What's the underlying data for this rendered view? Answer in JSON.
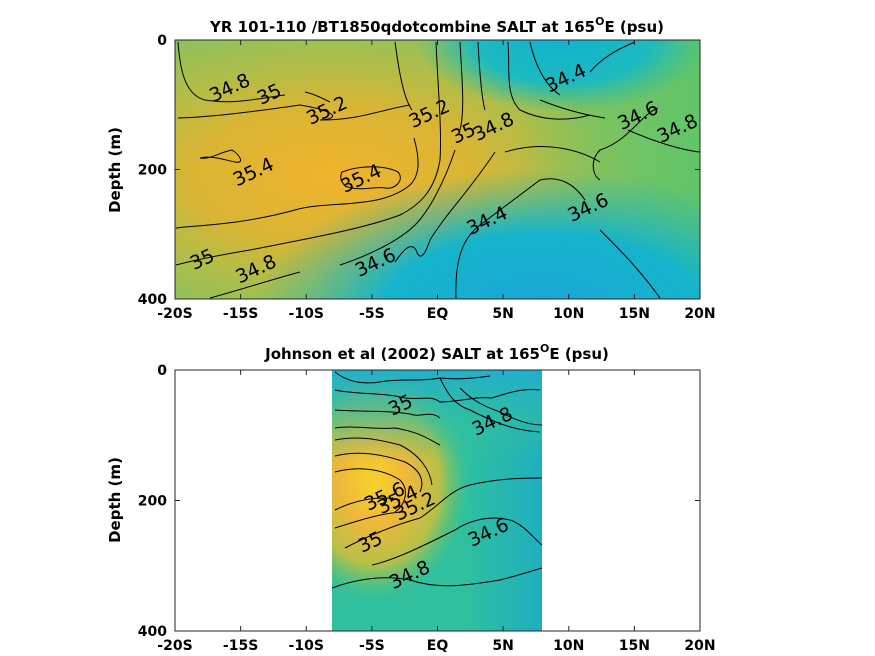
{
  "chart_data": [
    {
      "type": "heatmap",
      "title_main": "YR 101-110 /BT1850qdotcombine SALT at 165",
      "title_sup": "O",
      "title_end": "E (psu)",
      "ylabel": "Depth (m)",
      "xlim": [
        -20,
        20
      ],
      "ylim": [
        400,
        0
      ],
      "x_ticks": [
        -20,
        -15,
        -10,
        -5,
        0,
        5,
        10,
        15,
        20
      ],
      "x_tick_labels": [
        "-20S",
        "-15S",
        "-10S",
        "-5S",
        "EQ",
        "5N",
        "10N",
        "15N",
        "20N"
      ],
      "y_ticks": [
        0,
        200,
        400
      ],
      "y_tick_labels": [
        "0",
        "200",
        "400"
      ],
      "contour_labels": [
        {
          "text": "34.8",
          "x": -15.8,
          "y": 75
        },
        {
          "text": "35",
          "x": -12.8,
          "y": 85
        },
        {
          "text": "35.2",
          "x": -8.4,
          "y": 110
        },
        {
          "text": "35.2",
          "x": -0.6,
          "y": 115
        },
        {
          "text": "35",
          "x": 2.0,
          "y": 145
        },
        {
          "text": "34.8",
          "x": 4.3,
          "y": 135
        },
        {
          "text": "34.4",
          "x": 9.8,
          "y": 60
        },
        {
          "text": "34.6",
          "x": 15.3,
          "y": 118
        },
        {
          "text": "34.8",
          "x": 18.3,
          "y": 138
        },
        {
          "text": "35.4",
          "x": -14.0,
          "y": 205
        },
        {
          "text": "35.4",
          "x": -5.8,
          "y": 215
        },
        {
          "text": "34.6",
          "x": 11.5,
          "y": 260
        },
        {
          "text": "34.4",
          "x": 3.8,
          "y": 280
        },
        {
          "text": "34.6",
          "x": -4.7,
          "y": 345
        },
        {
          "text": "35",
          "x": -17.9,
          "y": 340
        },
        {
          "text": "34.8",
          "x": -13.8,
          "y": 355
        }
      ]
    },
    {
      "type": "heatmap",
      "title_main": "Johnson et al (2002) SALT at 165",
      "title_sup": "O",
      "title_end": "E (psu)",
      "ylabel": "Depth (m)",
      "xlim": [
        -20,
        20
      ],
      "ylim": [
        400,
        0
      ],
      "data_x_range": [
        -8,
        8
      ],
      "x_ticks": [
        -20,
        -15,
        -10,
        -5,
        0,
        5,
        10,
        15,
        20
      ],
      "x_tick_labels": [
        "-20S",
        "-15S",
        "-10S",
        "-5S",
        "EQ",
        "5N",
        "10N",
        "15N",
        "20N"
      ],
      "y_ticks": [
        0,
        200,
        400
      ],
      "y_tick_labels": [
        "0",
        "200",
        "400"
      ],
      "contour_labels": [
        {
          "text": "35",
          "x": -2.8,
          "y": 55
        },
        {
          "text": "34.8",
          "x": 4.2,
          "y": 80
        },
        {
          "text": "35.6",
          "x": -4.0,
          "y": 195
        },
        {
          "text": "35.4",
          "x": -3.0,
          "y": 200
        },
        {
          "text": "35.2",
          "x": -1.7,
          "y": 210
        },
        {
          "text": "35",
          "x": -5.1,
          "y": 265
        },
        {
          "text": "34.6",
          "x": 3.9,
          "y": 250
        },
        {
          "text": "34.8",
          "x": -2.1,
          "y": 315
        }
      ]
    }
  ]
}
